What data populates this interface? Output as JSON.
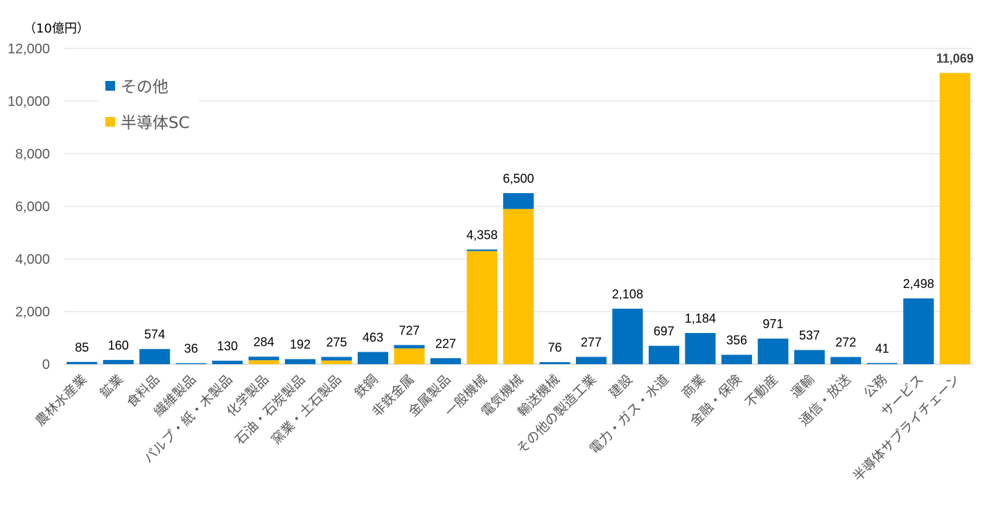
{
  "chart_data": {
    "type": "bar",
    "stacked": true,
    "unit_label": "（10億円）",
    "ylim": [
      0,
      12000
    ],
    "yticks": [
      "0",
      "2,000",
      "4,000",
      "6,000",
      "8,000",
      "10,000",
      "12,000"
    ],
    "grid": true,
    "legend_position": "top-left",
    "categories": [
      "農林水産業",
      "鉱業",
      "食料品",
      "繊維製品",
      "パルプ・紙・木製品",
      "化学製品",
      "石油・石炭製品",
      "窯業・土石製品",
      "鉄鋼",
      "非鉄金属",
      "金属製品",
      "一般機械",
      "電気機械",
      "輸送機械",
      "その他の製造工業",
      "建設",
      "電力・ガス・水道",
      "商業",
      "金融・保険",
      "不動産",
      "運輸",
      "通信・放送",
      "公務",
      "サービス",
      "半導体サプライチェーン"
    ],
    "totals": [
      85,
      160,
      574,
      36,
      130,
      284,
      192,
      275,
      463,
      727,
      227,
      4358,
      6500,
      76,
      277,
      2108,
      697,
      1184,
      356,
      971,
      537,
      272,
      41,
      2498,
      11069
    ],
    "total_labels": [
      "85",
      "160",
      "574",
      "36",
      "130",
      "284",
      "192",
      "275",
      "463",
      "727",
      "227",
      "4,358",
      "6,500",
      "76",
      "277",
      "2,108",
      "697",
      "1,184",
      "356",
      "971",
      "537",
      "272",
      "41",
      "2,498",
      "11,069"
    ],
    "series": [
      {
        "name": "半導体SC",
        "color": "#FFC000",
        "values": [
          0,
          0,
          0,
          0,
          0,
          150,
          0,
          140,
          0,
          600,
          0,
          4300,
          5900,
          0,
          0,
          0,
          0,
          0,
          0,
          0,
          0,
          0,
          0,
          0,
          11069
        ]
      },
      {
        "name": "その他",
        "color": "#0070C0",
        "values": [
          85,
          160,
          574,
          36,
          130,
          134,
          192,
          135,
          463,
          127,
          227,
          58,
          600,
          76,
          277,
          2108,
          697,
          1184,
          356,
          971,
          537,
          272,
          41,
          2498,
          0
        ]
      }
    ],
    "legend": [
      {
        "name": "その他",
        "color": "#0070C0"
      },
      {
        "name": "半導体SC",
        "color": "#FFC000"
      }
    ]
  }
}
